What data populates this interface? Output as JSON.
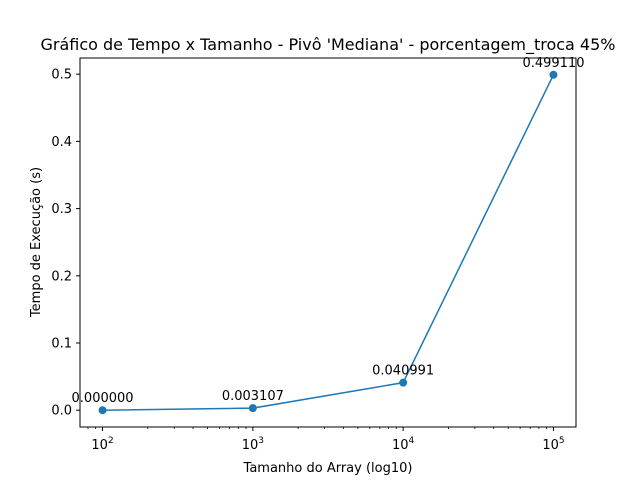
{
  "chart_data": {
    "type": "line",
    "title": "Gráfico de Tempo x Tamanho - Pivô 'Mediana' - porcentagem_troca 45%",
    "xlabel": "Tamanho do Array (log10)",
    "ylabel": "Tempo de Execução (s)",
    "x_scale": "log10",
    "x": [
      100,
      1000,
      10000,
      100000
    ],
    "values": [
      0.0,
      0.003107,
      0.040991,
      0.49911
    ],
    "data_labels": [
      "0.000000",
      "0.003107",
      "0.040991",
      "0.499110"
    ],
    "xticks": [
      {
        "value": 100,
        "base": "10",
        "exp": "2"
      },
      {
        "value": 1000,
        "base": "10",
        "exp": "3"
      },
      {
        "value": 10000,
        "base": "10",
        "exp": "4"
      },
      {
        "value": 100000,
        "base": "10",
        "exp": "5"
      }
    ],
    "yticks": [
      {
        "value": 0.0,
        "label": "0.0"
      },
      {
        "value": 0.1,
        "label": "0.1"
      },
      {
        "value": 0.2,
        "label": "0.2"
      },
      {
        "value": 0.3,
        "label": "0.3"
      },
      {
        "value": 0.4,
        "label": "0.4"
      },
      {
        "value": 0.5,
        "label": "0.5"
      }
    ],
    "xlim": [
      70.8,
      141254
    ],
    "ylim": [
      -0.02496,
      0.52407
    ],
    "grid": false,
    "legend": "none",
    "colors": {
      "series": "#1f77b4",
      "axes": "#000000",
      "background": "#ffffff"
    }
  }
}
